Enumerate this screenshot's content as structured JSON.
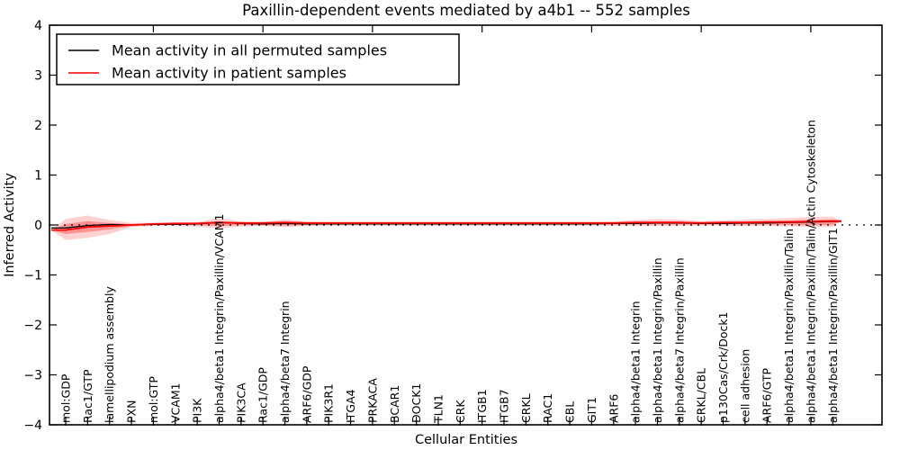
{
  "title": "Paxillin-dependent events mediated by a4b1 -- 552 samples",
  "axes": {
    "x_label": "Cellular Entities",
    "y_label": "Inferred Activity",
    "y_tick_labels": [
      "4",
      "3",
      "2",
      "1",
      "0",
      "−1",
      "−2",
      "−3",
      "−4"
    ],
    "y_tick_values": [
      4,
      3,
      2,
      1,
      0,
      -1,
      -2,
      -3,
      -4
    ]
  },
  "colors": {
    "permuted_line": "#000000",
    "patient_line": "#ff0000",
    "band_fill": "#ff0000",
    "zero_line": "#000000",
    "frame": "#000000"
  },
  "chart_data": {
    "type": "line",
    "title": "Paxillin-dependent events mediated by a4b1 -- 552 samples",
    "xlabel": "Cellular Entities",
    "ylabel": "Inferred Activity",
    "ylim": [
      -4,
      4
    ],
    "sample_count_in_title": 552,
    "grid": false,
    "legend_position": "upper left",
    "x_major_tick_every": 5,
    "zero_reference_line": {
      "y": 0,
      "style": "dotted",
      "color": "#000000"
    },
    "categories": [
      "mol:GDP",
      "Rac1/GTP",
      "lamellipodium assembly",
      "PXN",
      "mol:GTP",
      "VCAM1",
      "PI3K",
      "alpha4/beta1 Integrin/Paxillin/VCAM1",
      "PIK3CA",
      "Rac1/GDP",
      "alpha4/beta7 Integrin",
      "ARF6/GDP",
      "PIK3R1",
      "ITGA4",
      "PRKACA",
      "BCAR1",
      "DOCK1",
      "TLN1",
      "CRK",
      "ITGB1",
      "ITGB7",
      "CRKL",
      "RAC1",
      "CBL",
      "GIT1",
      "ARF6",
      "alpha4/beta1 Integrin",
      "alpha4/beta1 Integrin/Paxillin",
      "alpha4/beta7 Integrin/Paxillin",
      "CRKL/CBL",
      "p130Cas/Crk/Dock1",
      "cell adhesion",
      "ARF6/GTP",
      "alpha4/beta1 Integrin/Paxillin/Talin",
      "alpha4/beta1 Integrin/Paxillin/Talin/Actin Cytoskeleton",
      "alpha4/beta1 Integrin/Paxillin/GIT1"
    ],
    "series": [
      {
        "name": "Mean activity in all permuted samples",
        "color": "#000000",
        "style": "solid",
        "values": [
          -0.06,
          -0.01,
          0.01,
          0.0,
          0.01,
          0.01,
          0.02,
          0.05,
          0.03,
          0.02,
          0.03,
          0.02,
          0.02,
          0.02,
          0.02,
          0.02,
          0.02,
          0.02,
          0.02,
          0.02,
          0.02,
          0.02,
          0.02,
          0.02,
          0.02,
          0.03,
          0.03,
          0.04,
          0.04,
          0.03,
          0.03,
          0.04,
          0.04,
          0.05,
          0.06,
          0.07
        ]
      },
      {
        "name": "Mean activity in patient samples",
        "color": "#ff0000",
        "style": "solid",
        "values": [
          -0.1,
          -0.04,
          -0.02,
          0.0,
          0.02,
          0.03,
          0.03,
          0.05,
          0.04,
          0.04,
          0.05,
          0.04,
          0.04,
          0.04,
          0.04,
          0.04,
          0.04,
          0.04,
          0.04,
          0.04,
          0.04,
          0.04,
          0.04,
          0.04,
          0.04,
          0.04,
          0.05,
          0.05,
          0.05,
          0.04,
          0.05,
          0.05,
          0.06,
          0.06,
          0.07,
          0.08
        ]
      }
    ],
    "band": {
      "color": "#ff0000",
      "outer_top": [
        0.12,
        0.19,
        0.1,
        0.04,
        0.05,
        0.05,
        0.06,
        0.14,
        0.07,
        0.06,
        0.11,
        0.07,
        0.06,
        0.06,
        0.06,
        0.06,
        0.06,
        0.06,
        0.06,
        0.06,
        0.06,
        0.06,
        0.06,
        0.06,
        0.06,
        0.07,
        0.1,
        0.12,
        0.11,
        0.08,
        0.09,
        0.11,
        0.12,
        0.14,
        0.16,
        0.17
      ],
      "outer_bottom": [
        -0.3,
        -0.26,
        -0.18,
        -0.04,
        -0.02,
        -0.02,
        -0.03,
        -0.07,
        -0.03,
        -0.02,
        -0.04,
        -0.02,
        -0.01,
        -0.01,
        -0.01,
        -0.01,
        -0.01,
        -0.01,
        -0.01,
        -0.01,
        -0.01,
        -0.01,
        -0.01,
        -0.01,
        -0.01,
        -0.01,
        -0.02,
        -0.02,
        -0.02,
        -0.01,
        -0.01,
        -0.02,
        -0.02,
        -0.03,
        -0.04,
        -0.04
      ],
      "inner_top": [
        0.02,
        0.08,
        0.04,
        0.02,
        0.03,
        0.03,
        0.04,
        0.08,
        0.05,
        0.04,
        0.06,
        0.05,
        0.04,
        0.04,
        0.04,
        0.04,
        0.04,
        0.04,
        0.04,
        0.04,
        0.04,
        0.04,
        0.04,
        0.04,
        0.04,
        0.05,
        0.06,
        0.07,
        0.07,
        0.05,
        0.06,
        0.07,
        0.08,
        0.09,
        0.1,
        0.11
      ],
      "inner_bottom": [
        -0.18,
        -0.14,
        -0.09,
        -0.02,
        0.0,
        0.0,
        0.0,
        -0.02,
        0.0,
        0.0,
        -0.01,
        0.0,
        0.01,
        0.01,
        0.01,
        0.01,
        0.01,
        0.01,
        0.01,
        0.01,
        0.01,
        0.01,
        0.01,
        0.01,
        0.01,
        0.01,
        0.01,
        0.01,
        0.01,
        0.01,
        0.01,
        0.01,
        0.01,
        0.0,
        0.0,
        0.0
      ]
    }
  },
  "legend": {
    "items": [
      {
        "label": "Mean activity in all permuted samples",
        "color": "#000000"
      },
      {
        "label": "Mean activity in patient samples",
        "color": "#ff0000"
      }
    ]
  }
}
